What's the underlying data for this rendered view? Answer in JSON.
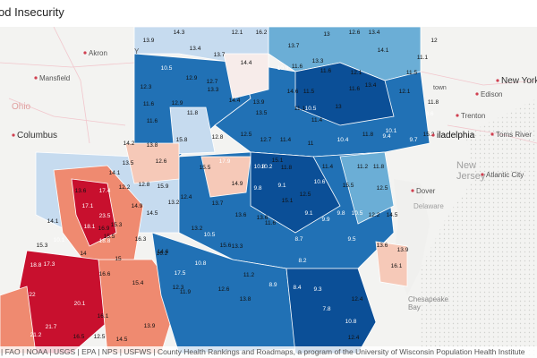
{
  "title": "od Insecurity",
  "attribution": "| FAO | NOAA | USGS | EPA | NPS | USFWS | County Health Rankings and Roadmaps, a program of the University of Wisconsin Population Health Institute",
  "colors": {
    "water": "#e8e9e6",
    "land": "#f3f3f1",
    "border": "#ffffff",
    "high": "#c8102e",
    "mid_high": "#ef8a70",
    "light_red": "#f6c9b8",
    "neutral": "#f7ecea",
    "light_blue": "#c6dbef",
    "mid_blue": "#6baed6",
    "blue": "#2171b5",
    "dark_blue": "#0b4f97"
  },
  "places": [
    {
      "name": "Aleron",
      "label": "Akron"
    },
    {
      "name": "Mansfield",
      "label": "Mansfield"
    },
    {
      "name": "Ohio",
      "label": "Ohio"
    },
    {
      "name": "Columbus",
      "label": "Columbus"
    },
    {
      "name": "Youngstown",
      "label": "Y"
    },
    {
      "name": "New York",
      "label": "New York"
    },
    {
      "name": "Edison",
      "label": "Edison"
    },
    {
      "name": "Trenton",
      "label": "Trenton"
    },
    {
      "name": "Toms River",
      "label": "Toms River"
    },
    {
      "name": "Philadelphia",
      "label": "iladelphia"
    },
    {
      "name": "New Jersey",
      "label": "New\nJersey"
    },
    {
      "name": "Atlantic City",
      "label": "Atlantic City"
    },
    {
      "name": "Dover",
      "label": "Dover"
    },
    {
      "name": "Delaware",
      "label": "Delaware"
    },
    {
      "name": "Chesapeake Bay",
      "label": "Chesapeake\nBay"
    },
    {
      "name": "Town",
      "label": "town"
    }
  ],
  "counties": [
    {
      "v": "13.9"
    },
    {
      "v": "14.3"
    },
    {
      "v": "12.1"
    },
    {
      "v": "16.2"
    },
    {
      "v": "13.7"
    },
    {
      "v": "13"
    },
    {
      "v": "12.6"
    },
    {
      "v": "13.4"
    },
    {
      "v": "12"
    },
    {
      "v": "13.4"
    },
    {
      "v": "13.7"
    },
    {
      "v": "11.6"
    },
    {
      "v": "13.3"
    },
    {
      "v": "14.1"
    },
    {
      "v": "11.1"
    },
    {
      "v": "10.5"
    },
    {
      "v": "14.4"
    },
    {
      "v": "10.9"
    },
    {
      "v": "11.6"
    },
    {
      "v": "12.1"
    },
    {
      "v": "12.9"
    },
    {
      "v": "12.7"
    },
    {
      "v": "11.5"
    },
    {
      "v": "12.3"
    },
    {
      "v": "13.3"
    },
    {
      "v": "13.4"
    },
    {
      "v": "12.1"
    },
    {
      "v": "11.6"
    },
    {
      "v": "14.6"
    },
    {
      "v": "11.5"
    },
    {
      "v": "14.4"
    },
    {
      "v": "13.9"
    },
    {
      "v": "11.6"
    },
    {
      "v": "11.8"
    },
    {
      "v": "11.1"
    },
    {
      "v": "10.5"
    },
    {
      "v": "13"
    },
    {
      "v": "11.8"
    },
    {
      "v": "8.6"
    },
    {
      "v": "12.9"
    },
    {
      "v": "11.6"
    },
    {
      "v": "13.5"
    },
    {
      "v": "11.4"
    },
    {
      "v": "15.8"
    },
    {
      "v": "12.8"
    },
    {
      "v": "12.5"
    },
    {
      "v": "12.7"
    },
    {
      "v": "11.4"
    },
    {
      "v": "10.4"
    },
    {
      "v": "11.8"
    },
    {
      "v": "10.1"
    },
    {
      "v": "9.4"
    },
    {
      "v": "9.7"
    },
    {
      "v": "15.2"
    },
    {
      "v": "14.2"
    },
    {
      "v": "13.8"
    },
    {
      "v": "11"
    },
    {
      "v": "15.1"
    },
    {
      "v": "11.8"
    },
    {
      "v": "13.5"
    },
    {
      "v": "12.6"
    },
    {
      "v": "15.5"
    },
    {
      "v": "17.9"
    },
    {
      "v": "10.8"
    },
    {
      "v": "10.2"
    },
    {
      "v": "14.1"
    },
    {
      "v": "11.4"
    },
    {
      "v": "11.2"
    },
    {
      "v": "11.8"
    },
    {
      "v": "13.6"
    },
    {
      "v": "17.4"
    },
    {
      "v": "12.2"
    },
    {
      "v": "12.8"
    },
    {
      "v": "15.9"
    },
    {
      "v": "12.4"
    },
    {
      "v": "14.9"
    },
    {
      "v": "9.8"
    },
    {
      "v": "9.1"
    },
    {
      "v": "15.5"
    },
    {
      "v": "10.6"
    },
    {
      "v": "12.5"
    },
    {
      "v": "15.1"
    },
    {
      "v": "12.5"
    },
    {
      "v": "17.1"
    },
    {
      "v": "14.9"
    },
    {
      "v": "13.2"
    },
    {
      "v": "13.7"
    },
    {
      "v": "14.5"
    },
    {
      "v": "13.6"
    },
    {
      "v": "13.6"
    },
    {
      "v": "14.1"
    },
    {
      "v": "23.5"
    },
    {
      "v": "18.1"
    },
    {
      "v": "16.9"
    },
    {
      "v": "15.3"
    },
    {
      "v": "15.5"
    },
    {
      "v": "13.2"
    },
    {
      "v": "10.5"
    },
    {
      "v": "15.6"
    },
    {
      "v": "13.3"
    },
    {
      "v": "10.1"
    },
    {
      "v": "14"
    },
    {
      "v": "18.8"
    },
    {
      "v": "16.3"
    },
    {
      "v": "14.6"
    },
    {
      "v": "15.3"
    },
    {
      "v": "17.3"
    },
    {
      "v": "15"
    },
    {
      "v": "16.2"
    },
    {
      "v": "17.5"
    },
    {
      "v": "10.8"
    },
    {
      "v": "11.2"
    },
    {
      "v": "18.8"
    },
    {
      "v": "16.6"
    },
    {
      "v": "15.4"
    },
    {
      "v": "12.3"
    },
    {
      "v": "12.6"
    },
    {
      "v": "22"
    },
    {
      "v": "20.1"
    },
    {
      "v": "16.1"
    },
    {
      "v": "11.9"
    },
    {
      "v": "13.8"
    },
    {
      "v": "21.7"
    },
    {
      "v": "16.5"
    },
    {
      "v": "12.5"
    },
    {
      "v": "14.5"
    },
    {
      "v": "13.9"
    },
    {
      "v": "21.2"
    },
    {
      "v": "11.6"
    },
    {
      "v": "8.9"
    },
    {
      "v": "9.1"
    },
    {
      "v": "9.9"
    },
    {
      "v": "9.8"
    },
    {
      "v": "10.5"
    },
    {
      "v": "12.2"
    },
    {
      "v": "14.5"
    },
    {
      "v": "9.5"
    },
    {
      "v": "13.6"
    },
    {
      "v": "13.9"
    },
    {
      "v": "16.1"
    },
    {
      "v": "8.7"
    },
    {
      "v": "8.2"
    },
    {
      "v": "8.4"
    },
    {
      "v": "9.3"
    },
    {
      "v": "12.4"
    },
    {
      "v": "7.8"
    },
    {
      "v": "10.8"
    },
    {
      "v": "12.4"
    }
  ]
}
